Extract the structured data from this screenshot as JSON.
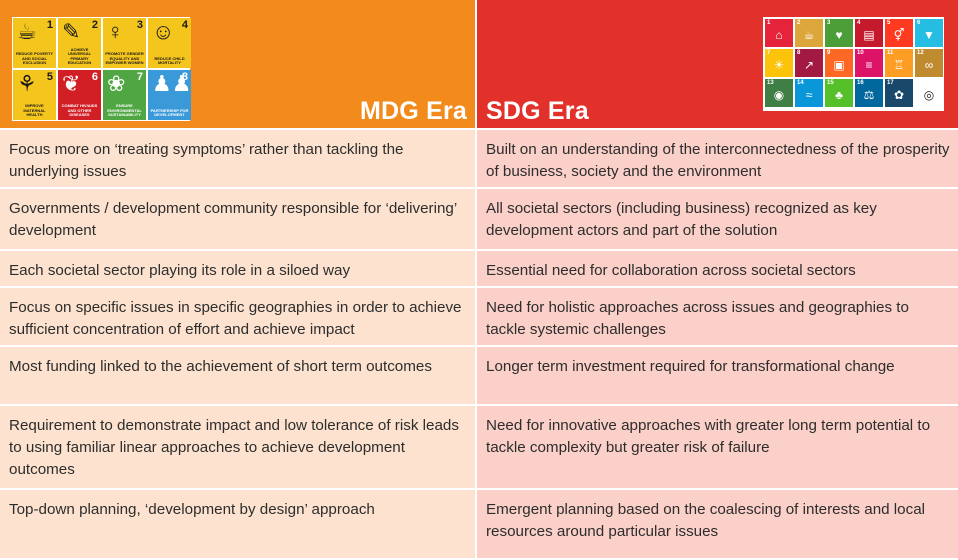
{
  "mdg": {
    "title": "MDG Era",
    "tiles": [
      {
        "num": "1",
        "caption": "Reduce poverty and social exclusion",
        "icon": "bowl-icon",
        "glyph": "☕",
        "color": "#f4c51d"
      },
      {
        "num": "2",
        "caption": "Achieve universal primary education",
        "icon": "pencil-icon",
        "glyph": "✎",
        "color": "#f4c51d"
      },
      {
        "num": "3",
        "caption": "Promote gender equality and empower women",
        "icon": "female-icon",
        "glyph": "♀",
        "color": "#f4c51d"
      },
      {
        "num": "4",
        "caption": "Reduce child mortality",
        "icon": "child-icon",
        "glyph": "☺",
        "color": "#f4c51d"
      },
      {
        "num": "5",
        "caption": "Improve maternal health",
        "icon": "mother-icon",
        "glyph": "⚘",
        "color": "#f4c51d"
      },
      {
        "num": "6",
        "caption": "Combat HIV/AIDS and other diseases",
        "icon": "ribbon-icon",
        "glyph": "❦",
        "color": "#d21f26"
      },
      {
        "num": "7",
        "caption": "Ensure environmental sustainability",
        "icon": "leaf-icon",
        "glyph": "❀",
        "color": "#51a644"
      },
      {
        "num": "8",
        "caption": "Partnership for development",
        "icon": "people-icon",
        "glyph": "♟♟",
        "color": "#3a9ad9"
      }
    ]
  },
  "sdg": {
    "title": "SDG Era",
    "tiles": [
      {
        "n": "1",
        "icon": "family-icon",
        "glyph": "⌂",
        "color": "#e5243b"
      },
      {
        "n": "2",
        "icon": "bowl-icon",
        "glyph": "☕",
        "color": "#dda63a"
      },
      {
        "n": "3",
        "icon": "heartbeat-icon",
        "glyph": "♥",
        "color": "#4c9f38"
      },
      {
        "n": "4",
        "icon": "book-icon",
        "glyph": "▤",
        "color": "#c5192d"
      },
      {
        "n": "5",
        "icon": "gender-icon",
        "glyph": "⚥",
        "color": "#ff3a21"
      },
      {
        "n": "6",
        "icon": "water-icon",
        "glyph": "▼",
        "color": "#26bde2"
      },
      {
        "n": "7",
        "icon": "sun-icon",
        "glyph": "☀",
        "color": "#fcc30b"
      },
      {
        "n": "8",
        "icon": "growth-icon",
        "glyph": "↗",
        "color": "#a21942"
      },
      {
        "n": "9",
        "icon": "cubes-icon",
        "glyph": "▣",
        "color": "#fd6925"
      },
      {
        "n": "10",
        "icon": "equal-icon",
        "glyph": "≡",
        "color": "#dd1367"
      },
      {
        "n": "11",
        "icon": "city-icon",
        "glyph": "♖",
        "color": "#fd9d24"
      },
      {
        "n": "12",
        "icon": "infinity-icon",
        "glyph": "∞",
        "color": "#bf8b2e"
      },
      {
        "n": "13",
        "icon": "eye-icon",
        "glyph": "◉",
        "color": "#3f7e44"
      },
      {
        "n": "14",
        "icon": "fish-icon",
        "glyph": "≈",
        "color": "#0a97d9"
      },
      {
        "n": "15",
        "icon": "tree-icon",
        "glyph": "♣",
        "color": "#56c02b"
      },
      {
        "n": "16",
        "icon": "dove-icon",
        "glyph": "⚖",
        "color": "#00689d"
      },
      {
        "n": "17",
        "icon": "flower-icon",
        "glyph": "✿",
        "color": "#19486a"
      },
      {
        "n": "",
        "icon": "sdg-logo-icon",
        "glyph": "◎",
        "color": "#ffffff"
      }
    ]
  },
  "rows": [
    {
      "mdg": "Focus more on ‘treating symptoms’ rather than tackling the underlying issues",
      "sdg": "Built on an understanding of the interconnectedness of the prosperity of business, society and the environment"
    },
    {
      "mdg": "Governments / development community responsible for ‘delivering’ development",
      "sdg": "All societal sectors (including business) recognized as key development actors and part of the solution"
    },
    {
      "mdg": "Each societal sector playing its role in a siloed way",
      "sdg": "Essential need for collaboration across societal sectors"
    },
    {
      "mdg": "Focus on specific issues in specific geographies in order to achieve sufficient concentration of effort and achieve impact",
      "sdg": "Need for holistic approaches across issues and geographies to tackle systemic challenges"
    },
    {
      "mdg": "Most funding linked to the achievement of short term outcomes",
      "sdg": "Longer term investment required for transformational change"
    },
    {
      "mdg": "Requirement to demonstrate impact and low tolerance of risk leads to using familiar linear approaches to achieve development outcomes",
      "sdg": "Need for innovative approaches with greater long term potential to tackle complexity but greater risk of failure"
    },
    {
      "mdg": "Top-down planning, ‘development by design’ approach",
      "sdg": "Emergent planning based on the coalescing of interests and local resources around particular issues"
    }
  ]
}
